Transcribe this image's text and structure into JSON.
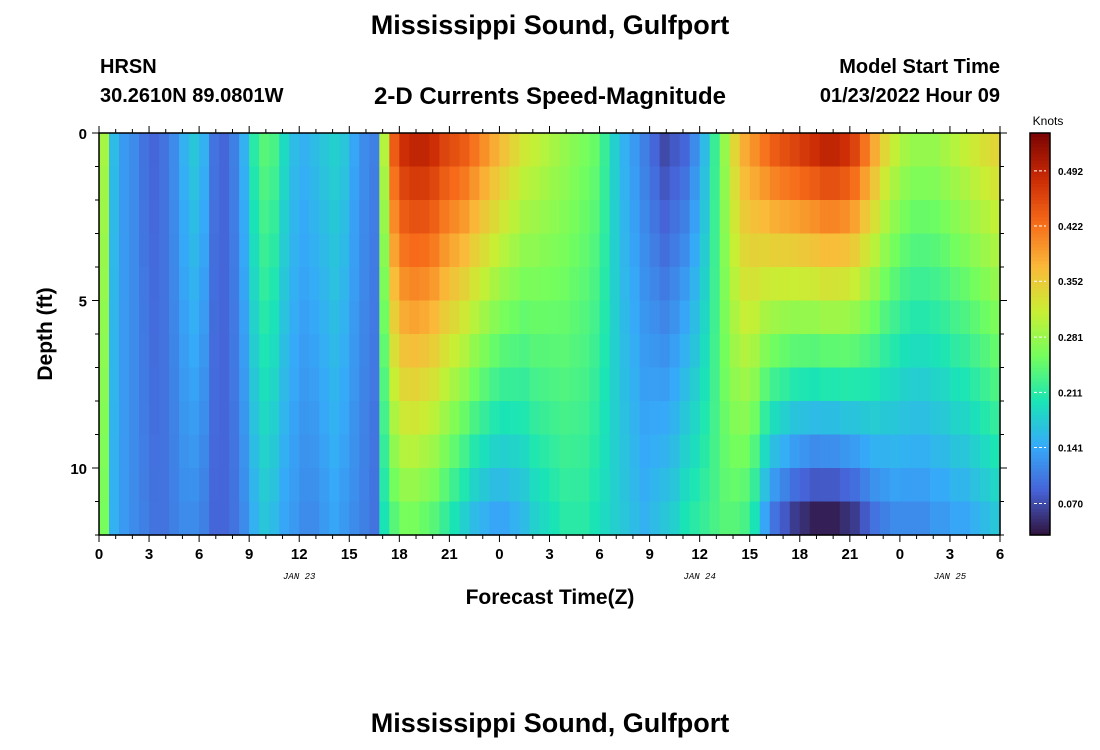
{
  "header": {
    "title": "Mississippi Sound, Gulfport",
    "station": "HRSN",
    "coords": "30.2610N  89.0801W",
    "subtitle": "2-D Currents Speed-Magnitude",
    "model_start_label": "Model Start Time",
    "model_start_value": "01/23/2022 Hour 09"
  },
  "footer": {
    "title": "Mississippi Sound, Gulfport"
  },
  "chart_data": {
    "type": "heatmap",
    "xlabel": "Forecast Time(Z)",
    "ylabel": "Depth (ft)",
    "x_tick_labels": [
      "0",
      "3",
      "6",
      "9",
      "12",
      "15",
      "18",
      "21",
      "0",
      "3",
      "6",
      "9",
      "12",
      "15",
      "18",
      "21",
      "0",
      "3",
      "6"
    ],
    "date_labels": [
      {
        "label": "JAN 23",
        "hour": 12
      },
      {
        "label": "JAN 24",
        "hour": 36
      },
      {
        "label": "JAN 25",
        "hour": 51
      }
    ],
    "x_range_hours": [
      0,
      54
    ],
    "y_ticks": [
      0,
      5,
      10
    ],
    "y_range_ft": [
      0,
      12
    ],
    "depth_levels_ft": [
      0.5,
      1.5,
      2.5,
      3.5,
      4.5,
      5.5,
      6.5,
      7.5,
      8.5,
      9.5,
      10.5,
      11.5
    ],
    "colorbar": {
      "title": "Knots",
      "ticks": [
        0.07,
        0.141,
        0.211,
        0.281,
        0.352,
        0.422,
        0.492
      ],
      "tick_labels": [
        "0.070",
        "0.141",
        "0.211",
        "0.281",
        "0.352",
        "0.422",
        "0.492"
      ],
      "range": [
        0.03,
        0.54
      ],
      "colormap": [
        "#30123b",
        "#4662d7",
        "#36aaf9",
        "#1ae4b6",
        "#72fe5e",
        "#c8ef34",
        "#faba39",
        "#f66b19",
        "#ca2a04",
        "#7a0403"
      ]
    },
    "speed_knots_surface": [
      0.29,
      0.16,
      0.13,
      0.12,
      0.1,
      0.09,
      0.1,
      0.12,
      0.15,
      0.17,
      0.15,
      0.1,
      0.09,
      0.11,
      0.15,
      0.21,
      0.24,
      0.23,
      0.19,
      0.16,
      0.15,
      0.16,
      0.17,
      0.18,
      0.17,
      0.14,
      0.12,
      0.11,
      0.3,
      0.44,
      0.48,
      0.49,
      0.49,
      0.48,
      0.46,
      0.45,
      0.44,
      0.42,
      0.4,
      0.38,
      0.36,
      0.34,
      0.32,
      0.31,
      0.3,
      0.29,
      0.28,
      0.27,
      0.26,
      0.25,
      0.22,
      0.18,
      0.15,
      0.13,
      0.11,
      0.09,
      0.07,
      0.08,
      0.09,
      0.12,
      0.16,
      0.22,
      0.28,
      0.34,
      0.38,
      0.4,
      0.42,
      0.44,
      0.45,
      0.46,
      0.47,
      0.48,
      0.49,
      0.49,
      0.48,
      0.46,
      0.42,
      0.38,
      0.34,
      0.31,
      0.29,
      0.28,
      0.28,
      0.28,
      0.29,
      0.3,
      0.31,
      0.32,
      0.33,
      0.34
    ],
    "speed_knots_bottom": [
      0.26,
      0.15,
      0.13,
      0.12,
      0.11,
      0.1,
      0.1,
      0.11,
      0.12,
      0.12,
      0.11,
      0.09,
      0.09,
      0.1,
      0.12,
      0.15,
      0.17,
      0.16,
      0.14,
      0.13,
      0.12,
      0.12,
      0.13,
      0.14,
      0.13,
      0.12,
      0.11,
      0.1,
      0.2,
      0.24,
      0.26,
      0.26,
      0.25,
      0.24,
      0.22,
      0.2,
      0.18,
      0.16,
      0.15,
      0.14,
      0.14,
      0.15,
      0.16,
      0.18,
      0.19,
      0.2,
      0.21,
      0.21,
      0.21,
      0.2,
      0.19,
      0.18,
      0.17,
      0.16,
      0.15,
      0.16,
      0.17,
      0.18,
      0.2,
      0.21,
      0.22,
      0.23,
      0.24,
      0.24,
      0.23,
      0.2,
      0.14,
      0.1,
      0.08,
      0.06,
      0.05,
      0.04,
      0.04,
      0.04,
      0.05,
      0.06,
      0.08,
      0.1,
      0.11,
      0.12,
      0.12,
      0.12,
      0.12,
      0.13,
      0.13,
      0.14,
      0.14,
      0.15,
      0.16,
      0.17
    ]
  }
}
